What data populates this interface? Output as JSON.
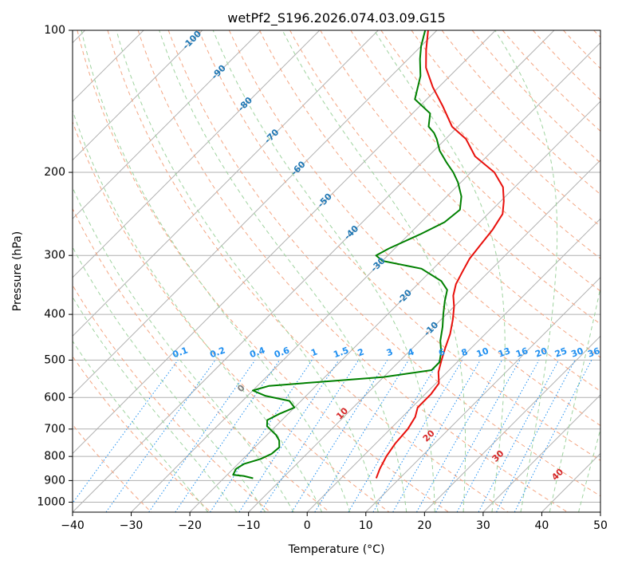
{
  "chart_data": {
    "type": "line",
    "title": "wetPf2_S196.2026.074.03.09.G15",
    "xlabel": "Temperature (°C)",
    "ylabel": "Pressure (hPa)",
    "xlim": [
      -40,
      50
    ],
    "ylim": [
      1050,
      100
    ],
    "y_scale": "log",
    "x_ticks": [
      -40,
      -30,
      -20,
      -10,
      0,
      10,
      20,
      30,
      40,
      50
    ],
    "y_ticks": [
      100,
      200,
      300,
      400,
      500,
      600,
      700,
      800,
      900,
      1000
    ],
    "grid": true,
    "skew": "skew-T log-P",
    "series": [
      {
        "color": "#e8100c",
        "points": [
          [
            6.0,
            890
          ],
          [
            5.0,
            850
          ],
          [
            4.0,
            800
          ],
          [
            3.3,
            750
          ],
          [
            3.0,
            700
          ],
          [
            2.2,
            660
          ],
          [
            1.0,
            630
          ],
          [
            1.0,
            590
          ],
          [
            0.5,
            560
          ],
          [
            -1.5,
            530
          ],
          [
            -3.0,
            500
          ],
          [
            -4.5,
            470
          ],
          [
            -6.0,
            440
          ],
          [
            -8.0,
            410
          ],
          [
            -10.0,
            385
          ],
          [
            -12.0,
            365
          ],
          [
            -13.5,
            345
          ],
          [
            -14.5,
            325
          ],
          [
            -15.5,
            305
          ],
          [
            -16.0,
            285
          ],
          [
            -16.5,
            265
          ],
          [
            -17.5,
            245
          ],
          [
            -19.5,
            230
          ],
          [
            -22.0,
            215
          ],
          [
            -26.0,
            200
          ],
          [
            -32.0,
            185
          ],
          [
            -36.5,
            170
          ],
          [
            -41.0,
            160
          ],
          [
            -46.0,
            145
          ],
          [
            -51.0,
            132
          ],
          [
            -55.5,
            120
          ],
          [
            -58.5,
            110
          ],
          [
            -61.5,
            100
          ]
        ]
      },
      {
        "color": "#008000",
        "points": [
          [
            -15.0,
            890
          ],
          [
            -17.0,
            880
          ],
          [
            -19.0,
            875
          ],
          [
            -19.5,
            850
          ],
          [
            -19.0,
            830
          ],
          [
            -17.0,
            810
          ],
          [
            -16.0,
            790
          ],
          [
            -15.8,
            765
          ],
          [
            -17.0,
            740
          ],
          [
            -18.5,
            720
          ],
          [
            -20.0,
            705
          ],
          [
            -21.5,
            690
          ],
          [
            -22.5,
            670
          ],
          [
            -21.5,
            650
          ],
          [
            -20.0,
            630
          ],
          [
            -22.0,
            610
          ],
          [
            -27.0,
            595
          ],
          [
            -30.0,
            580
          ],
          [
            -28.0,
            567
          ],
          [
            -20.0,
            556
          ],
          [
            -10.0,
            543
          ],
          [
            -3.0,
            525
          ],
          [
            -3.0,
            505
          ],
          [
            -4.5,
            480
          ],
          [
            -6.5,
            455
          ],
          [
            -8.5,
            425
          ],
          [
            -10.5,
            400
          ],
          [
            -12.5,
            375
          ],
          [
            -14.0,
            355
          ],
          [
            -16.5,
            340
          ],
          [
            -22.0,
            320
          ],
          [
            -30.0,
            308
          ],
          [
            -32.0,
            300
          ],
          [
            -31.0,
            290
          ],
          [
            -28.0,
            270
          ],
          [
            -26.0,
            255
          ],
          [
            -25.5,
            240
          ],
          [
            -27.5,
            225
          ],
          [
            -30.5,
            210
          ],
          [
            -33.0,
            200
          ],
          [
            -36.0,
            190
          ],
          [
            -39.0,
            180
          ],
          [
            -41.5,
            170
          ],
          [
            -43.0,
            165
          ],
          [
            -45.0,
            160
          ],
          [
            -47.0,
            150
          ],
          [
            -52.0,
            140
          ],
          [
            -55.0,
            125
          ],
          [
            -58.0,
            115
          ],
          [
            -60.0,
            108
          ],
          [
            -62.0,
            100
          ]
        ]
      }
    ],
    "isotherm_labels": [
      "-100",
      "-90",
      "-80",
      "-70",
      "-60",
      "-50",
      "-40",
      "-30",
      "-20",
      "-10"
    ],
    "isotherm_label_color": "#1f77b4",
    "mixing_ratio_labels": [
      "0.1",
      "0.2",
      "0.4",
      "0.6",
      "1",
      "1.5",
      "2",
      "3",
      "4",
      "6",
      "8",
      "10",
      "13",
      "16",
      "20",
      "25",
      "30",
      "36"
    ],
    "mixing_ratio_label_color": "#1f8ff0",
    "moist_adiabat_labels": [
      "0",
      "10",
      "20",
      "30",
      "40"
    ],
    "moist_adiabat_label_colors": [
      "#808080",
      "#d62728",
      "#d62728",
      "#d62728",
      "#d62728"
    ]
  }
}
